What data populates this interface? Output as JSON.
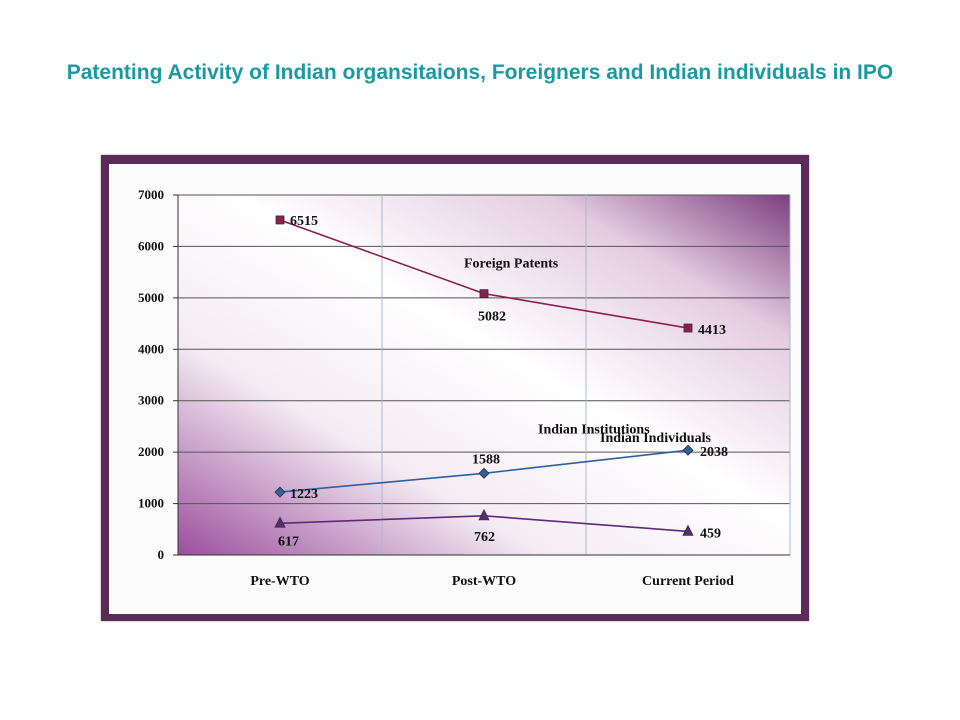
{
  "title": "Patenting Activity of Indian organsitaions, Foreigners and Indian individuals in IPO",
  "colors": {
    "title": "#1a9aa0",
    "frame": "#5a2a58",
    "foreign": "#8b1f4e",
    "institutions": "#2e5fa0",
    "individuals": "#5c2a78"
  },
  "chart_data": {
    "type": "line",
    "title": "",
    "xlabel": "",
    "ylabel": "",
    "categories": [
      "Pre-WTO",
      "Post-WTO",
      "Current Period"
    ],
    "ylim": [
      0,
      7000
    ],
    "yticks": [
      "0",
      "1000",
      "2000",
      "3000",
      "4000",
      "5000",
      "6000",
      "7000"
    ],
    "grid": true,
    "series": [
      {
        "name": "Foreign Patents",
        "marker": "square",
        "values": [
          6515,
          5082,
          4413
        ],
        "labels": [
          "6515",
          "5082",
          "4413"
        ]
      },
      {
        "name": "Indian Institutions",
        "marker": "diamond",
        "values": [
          1223,
          1588,
          2038
        ],
        "labels": [
          "1223",
          "1588",
          "2038"
        ]
      },
      {
        "name": "Indian Individuals",
        "marker": "triangle",
        "values": [
          617,
          762,
          459
        ],
        "labels": [
          "617",
          "762",
          "459"
        ]
      }
    ]
  }
}
